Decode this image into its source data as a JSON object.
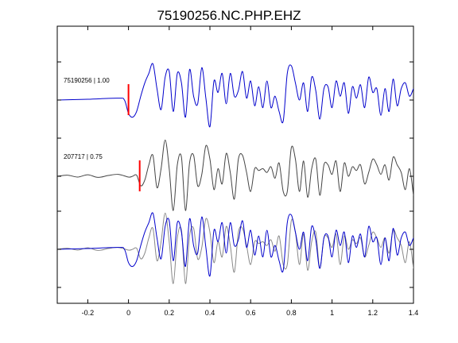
{
  "chart_data": {
    "type": "line",
    "title": "75190256.NC.PHP.EHZ",
    "xlabel": "",
    "ylabel": "",
    "xlim": [
      -0.35,
      1.4
    ],
    "xticks": [
      -0.2,
      0,
      0.2,
      0.4,
      0.6,
      0.8,
      1,
      1.2,
      1.4
    ],
    "xtick_labels": [
      "-0.2",
      "0",
      "0.2",
      "0.4",
      "0.6",
      "0.8",
      "1",
      "1.2",
      "1.4"
    ],
    "grid": false,
    "legend": "none",
    "trace_labels": [
      "75190256 | 1.00",
      "207717 | 0.75"
    ],
    "pick_times": [
      0.0,
      0.055
    ],
    "colors": {
      "primary": "#0000cc",
      "secondary": "#444444",
      "overlay_secondary": "#888888",
      "pick": "#ff0000"
    },
    "series": [
      {
        "trace": 1,
        "color": "#0000cc",
        "x": [
          -0.35,
          -0.2,
          -0.05,
          -0.02,
          0.0,
          0.02,
          0.04,
          0.06,
          0.08,
          0.1,
          0.12,
          0.14,
          0.16,
          0.18,
          0.2,
          0.22,
          0.24,
          0.26,
          0.28,
          0.3,
          0.32,
          0.34,
          0.36,
          0.38,
          0.4,
          0.42,
          0.44,
          0.46,
          0.48,
          0.5,
          0.52,
          0.54,
          0.56,
          0.58,
          0.6,
          0.62,
          0.64,
          0.66,
          0.68,
          0.7,
          0.72,
          0.74,
          0.76,
          0.78,
          0.8,
          0.82,
          0.84,
          0.86,
          0.88,
          0.9,
          0.92,
          0.94,
          0.96,
          0.98,
          1.0,
          1.02,
          1.04,
          1.06,
          1.08,
          1.1,
          1.12,
          1.14,
          1.16,
          1.18,
          1.2,
          1.22,
          1.24,
          1.26,
          1.28,
          1.3,
          1.32,
          1.34,
          1.36,
          1.38,
          1.4
        ],
        "y": [
          0.0,
          0.02,
          0.05,
          0.0,
          -0.35,
          -0.45,
          -0.3,
          0.1,
          0.45,
          0.7,
          0.95,
          0.3,
          -0.25,
          0.6,
          0.75,
          -0.3,
          0.7,
          0.45,
          -0.45,
          0.8,
          0.1,
          -0.1,
          0.85,
          0.05,
          -0.7,
          0.5,
          0.2,
          0.7,
          -0.1,
          0.7,
          0.1,
          0.25,
          0.75,
          0.05,
          0.5,
          -0.15,
          0.35,
          -0.2,
          0.5,
          -0.2,
          0.1,
          -0.3,
          -0.55,
          0.7,
          0.9,
          0.45,
          0.0,
          0.45,
          -0.3,
          0.6,
          0.25,
          -0.5,
          0.3,
          0.35,
          -0.2,
          0.5,
          0.1,
          0.45,
          -0.35,
          0.35,
          0.05,
          0.4,
          -0.2,
          0.6,
          0.2,
          0.3,
          -0.4,
          0.3,
          -0.3,
          0.55,
          -0.15,
          0.3,
          0.45,
          0.1,
          0.3
        ]
      },
      {
        "trace": 2,
        "color": "#444444",
        "x": [
          -0.35,
          -0.3,
          -0.25,
          -0.2,
          -0.15,
          -0.1,
          -0.05,
          0.0,
          0.02,
          0.04,
          0.06,
          0.08,
          0.1,
          0.12,
          0.14,
          0.16,
          0.18,
          0.2,
          0.22,
          0.24,
          0.26,
          0.28,
          0.3,
          0.32,
          0.34,
          0.36,
          0.38,
          0.4,
          0.42,
          0.44,
          0.46,
          0.48,
          0.5,
          0.52,
          0.54,
          0.56,
          0.58,
          0.6,
          0.62,
          0.64,
          0.66,
          0.68,
          0.7,
          0.72,
          0.74,
          0.76,
          0.78,
          0.8,
          0.82,
          0.84,
          0.86,
          0.88,
          0.9,
          0.92,
          0.94,
          0.96,
          0.98,
          1.0,
          1.02,
          1.04,
          1.06,
          1.08,
          1.1,
          1.12,
          1.14,
          1.16,
          1.18,
          1.2,
          1.22,
          1.24,
          1.26,
          1.28,
          1.3,
          1.32,
          1.34,
          1.36,
          1.38,
          1.4
        ],
        "y": [
          0.0,
          0.03,
          -0.02,
          0.04,
          -0.03,
          0.02,
          0.05,
          -0.02,
          0.0,
          0.03,
          -0.25,
          -0.1,
          0.3,
          0.55,
          -0.3,
          0.2,
          0.95,
          0.2,
          -0.9,
          0.3,
          0.5,
          -0.9,
          0.35,
          0.55,
          -0.25,
          0.05,
          0.8,
          0.45,
          -0.35,
          0.2,
          -0.2,
          0.6,
          0.1,
          -0.6,
          0.45,
          0.55,
          0.1,
          -0.4,
          0.2,
          0.15,
          0.2,
          0.1,
          0.25,
          -0.05,
          0.35,
          -0.4,
          -0.4,
          0.75,
          0.45,
          -0.4,
          0.4,
          -0.55,
          0.2,
          0.45,
          -0.5,
          0.3,
          0.3,
          0.05,
          0.4,
          -0.4,
          0.35,
          0.0,
          0.25,
          0.15,
          0.3,
          -0.2,
          0.1,
          0.45,
          0.3,
          0.05,
          0.3,
          -0.1,
          0.5,
          0.3,
          0.1,
          -0.35,
          0.2,
          -0.5
        ]
      },
      {
        "trace": 3,
        "color": "#0000cc",
        "x": [
          -0.35,
          -0.2,
          -0.05,
          -0.02,
          0.0,
          0.02,
          0.04,
          0.06,
          0.08,
          0.1,
          0.12,
          0.14,
          0.16,
          0.18,
          0.2,
          0.22,
          0.24,
          0.26,
          0.28,
          0.3,
          0.32,
          0.34,
          0.36,
          0.38,
          0.4,
          0.42,
          0.44,
          0.46,
          0.48,
          0.5,
          0.52,
          0.54,
          0.56,
          0.58,
          0.6,
          0.62,
          0.64,
          0.66,
          0.68,
          0.7,
          0.72,
          0.74,
          0.76,
          0.78,
          0.8,
          0.82,
          0.84,
          0.86,
          0.88,
          0.9,
          0.92,
          0.94,
          0.96,
          0.98,
          1.0,
          1.02,
          1.04,
          1.06,
          1.08,
          1.1,
          1.12,
          1.14,
          1.16,
          1.18,
          1.2,
          1.22,
          1.24,
          1.26,
          1.28,
          1.3,
          1.32,
          1.34,
          1.36,
          1.38,
          1.4
        ],
        "y": [
          0.0,
          0.02,
          0.05,
          0.0,
          -0.35,
          -0.45,
          -0.3,
          0.1,
          0.45,
          0.7,
          0.95,
          0.3,
          -0.25,
          0.6,
          0.75,
          -0.3,
          0.7,
          0.45,
          -0.45,
          0.8,
          0.1,
          -0.1,
          0.85,
          0.05,
          -0.7,
          0.5,
          0.2,
          0.7,
          -0.1,
          0.7,
          0.1,
          0.25,
          0.75,
          0.05,
          0.5,
          -0.15,
          0.35,
          -0.2,
          0.5,
          -0.2,
          0.1,
          -0.3,
          -0.55,
          0.7,
          0.9,
          0.45,
          0.0,
          0.45,
          -0.3,
          0.6,
          0.25,
          -0.5,
          0.3,
          0.35,
          -0.2,
          0.5,
          0.1,
          0.45,
          -0.35,
          0.35,
          0.05,
          0.4,
          -0.2,
          0.6,
          0.2,
          0.3,
          -0.4,
          0.3,
          -0.3,
          0.55,
          -0.15,
          0.3,
          0.45,
          0.1,
          0.3
        ]
      },
      {
        "trace": 3,
        "color": "#888888",
        "x": [
          -0.35,
          -0.3,
          -0.25,
          -0.2,
          -0.15,
          -0.1,
          -0.05,
          0.0,
          0.02,
          0.04,
          0.06,
          0.08,
          0.1,
          0.12,
          0.14,
          0.16,
          0.18,
          0.2,
          0.22,
          0.24,
          0.26,
          0.28,
          0.3,
          0.32,
          0.34,
          0.36,
          0.38,
          0.4,
          0.42,
          0.44,
          0.46,
          0.48,
          0.5,
          0.52,
          0.54,
          0.56,
          0.58,
          0.6,
          0.62,
          0.64,
          0.66,
          0.68,
          0.7,
          0.72,
          0.74,
          0.76,
          0.78,
          0.8,
          0.82,
          0.84,
          0.86,
          0.88,
          0.9,
          0.92,
          0.94,
          0.96,
          0.98,
          1.0,
          1.02,
          1.04,
          1.06,
          1.08,
          1.1,
          1.12,
          1.14,
          1.16,
          1.18,
          1.2,
          1.22,
          1.24,
          1.26,
          1.28,
          1.3,
          1.32,
          1.34,
          1.36,
          1.38,
          1.4
        ],
        "y": [
          0.0,
          0.03,
          -0.02,
          0.04,
          -0.03,
          0.02,
          0.05,
          -0.02,
          0.0,
          0.03,
          -0.25,
          -0.1,
          0.3,
          0.55,
          -0.3,
          0.2,
          0.95,
          0.2,
          -0.9,
          0.3,
          0.5,
          -0.9,
          0.35,
          0.55,
          -0.25,
          0.05,
          0.8,
          0.45,
          -0.35,
          0.2,
          -0.2,
          0.6,
          0.1,
          -0.6,
          0.45,
          0.55,
          0.1,
          -0.4,
          0.2,
          0.15,
          0.2,
          0.1,
          0.25,
          -0.05,
          0.35,
          -0.4,
          -0.4,
          0.75,
          0.45,
          -0.4,
          0.4,
          -0.55,
          0.2,
          0.45,
          -0.5,
          0.3,
          0.3,
          0.05,
          0.4,
          -0.4,
          0.35,
          0.0,
          0.25,
          0.15,
          0.3,
          -0.2,
          0.1,
          0.45,
          0.3,
          0.05,
          0.3,
          -0.1,
          0.5,
          0.3,
          0.1,
          -0.35,
          0.2,
          -0.5
        ]
      }
    ]
  }
}
